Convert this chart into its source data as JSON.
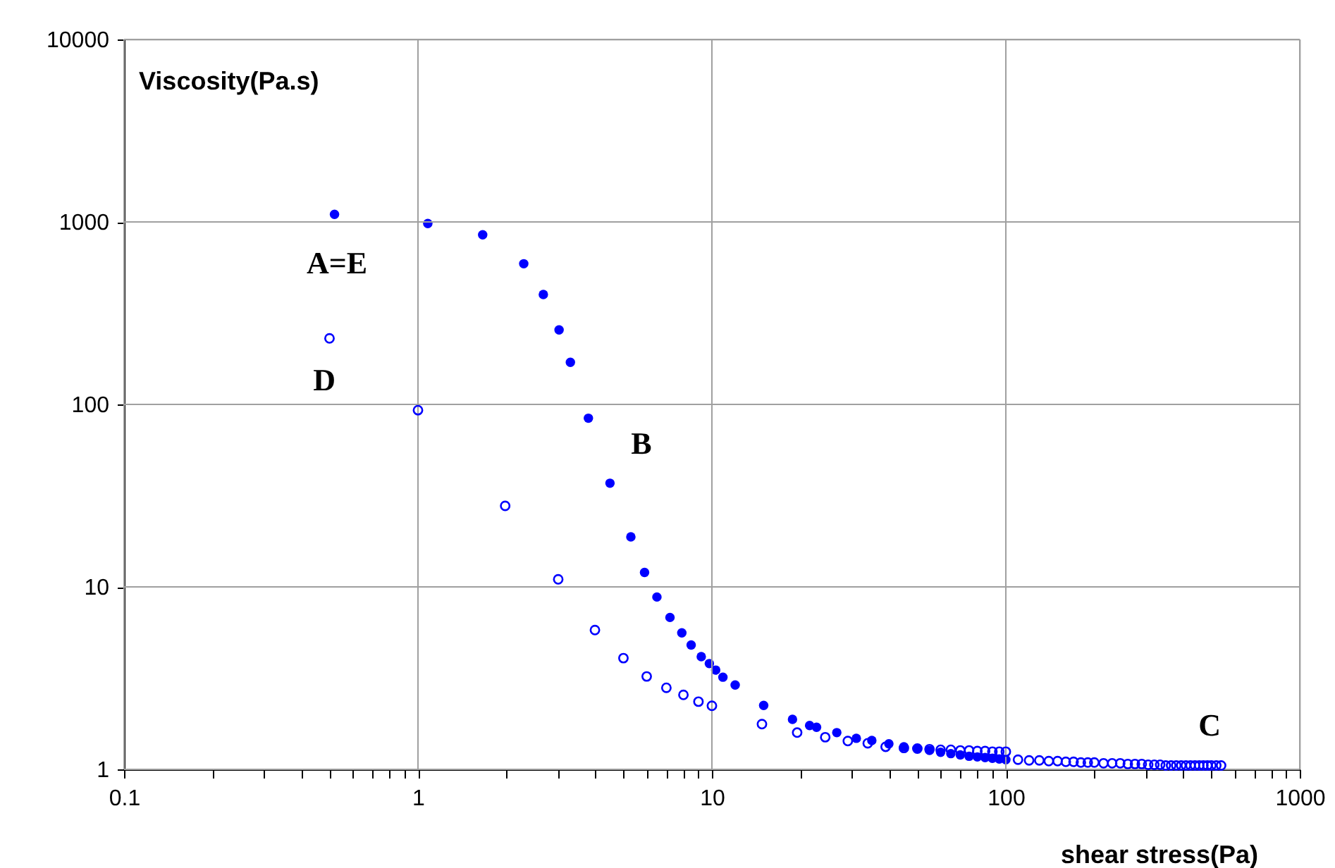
{
  "chart_data": {
    "type": "scatter",
    "xlabel": "shear stress(Pa)",
    "ylabel": "Viscosity(Pa.s)",
    "log": "xy",
    "grid": true,
    "marker": "circle",
    "xlim": [
      0.1,
      1000
    ],
    "ylim": [
      1,
      10000
    ],
    "xticks": [
      0.1,
      {
        "value": 0.2,
        "label": null
      },
      {
        "value": 0.3,
        "label": null
      },
      {
        "value": 0.4,
        "label": null
      },
      {
        "value": 0.5,
        "label": null
      },
      {
        "value": 0.6,
        "label": null
      },
      {
        "value": 0.7,
        "label": null
      },
      {
        "value": 0.8,
        "label": null
      },
      {
        "value": 0.9,
        "label": null
      },
      1,
      {
        "value": 2,
        "label": null
      },
      {
        "value": 3,
        "label": null
      },
      {
        "value": 4,
        "label": null
      },
      {
        "value": 5,
        "label": null
      },
      {
        "value": 6,
        "label": null
      },
      {
        "value": 7,
        "label": null
      },
      {
        "value": 8,
        "label": null
      },
      {
        "value": 9,
        "label": null
      },
      10,
      {
        "value": 20,
        "label": null
      },
      {
        "value": 30,
        "label": null
      },
      {
        "value": 40,
        "label": null
      },
      {
        "value": 50,
        "label": null
      },
      {
        "value": 60,
        "label": null
      },
      {
        "value": 70,
        "label": null
      },
      {
        "value": 80,
        "label": null
      },
      {
        "value": 90,
        "label": null
      },
      100,
      {
        "value": 200,
        "label": null
      },
      {
        "value": 300,
        "label": null
      },
      {
        "value": 400,
        "label": null
      },
      {
        "value": 500,
        "label": null
      },
      {
        "value": 600,
        "label": null
      },
      {
        "value": 700,
        "label": null
      },
      {
        "value": 800,
        "label": null
      },
      {
        "value": 900,
        "label": null
      },
      1000
    ],
    "yticks": [
      1,
      10,
      100,
      1000,
      10000
    ],
    "series": [
      {
        "color": "#0000ff",
        "x": [
          0.52,
          1.08,
          1.66,
          2.29,
          2.67,
          3.02,
          3.3,
          3.8,
          4.5,
          5.3,
          5.9,
          6.5,
          7.2,
          7.9,
          8.5,
          9.2,
          9.8,
          10.3,
          10.9,
          12,
          15,
          18.8,
          21.5,
          22.7,
          26.6,
          31,
          35,
          40,
          45,
          50,
          55,
          60,
          65,
          70,
          75,
          80,
          85,
          90,
          95,
          100
        ],
        "values": [
          1100,
          980,
          850,
          590,
          400,
          256,
          170,
          84,
          37,
          18.8,
          12,
          8.8,
          6.8,
          5.6,
          4.8,
          4.15,
          3.8,
          3.5,
          3.2,
          2.9,
          2.24,
          1.88,
          1.74,
          1.7,
          1.59,
          1.48,
          1.44,
          1.38,
          1.33,
          1.3,
          1.27,
          1.24,
          1.22,
          1.2,
          1.18,
          1.17,
          1.16,
          1.15,
          1.14,
          1.13
        ]
      },
      {
        "color": "#0000ff",
        "x": [
          0.5,
          1.0,
          1.98,
          3.0,
          4.0,
          5.0,
          6.0,
          7.0,
          8.0,
          9.0,
          10,
          14.8,
          19.5,
          24.3,
          29,
          33.9,
          39,
          45,
          50,
          55,
          60,
          65,
          70,
          75,
          80,
          85,
          90,
          95,
          100,
          110,
          120,
          130,
          140,
          150,
          160,
          170,
          180,
          190,
          200,
          215,
          230,
          245,
          260,
          275,
          290,
          305,
          320,
          335,
          350,
          365,
          380,
          395,
          410,
          425,
          440,
          455,
          470,
          485,
          500,
          520,
          540
        ],
        "values": [
          230,
          93,
          27.8,
          11,
          5.8,
          4.07,
          3.23,
          2.8,
          2.56,
          2.35,
          2.23,
          1.77,
          1.59,
          1.5,
          1.43,
          1.39,
          1.33,
          1.31,
          1.3,
          1.29,
          1.28,
          1.28,
          1.27,
          1.27,
          1.26,
          1.26,
          1.25,
          1.25,
          1.25,
          1.13,
          1.12,
          1.12,
          1.11,
          1.11,
          1.1,
          1.1,
          1.09,
          1.09,
          1.09,
          1.08,
          1.08,
          1.08,
          1.07,
          1.07,
          1.07,
          1.06,
          1.06,
          1.06,
          1.05,
          1.05,
          1.05,
          1.05,
          1.05,
          1.05,
          1.05,
          1.05,
          1.05,
          1.05,
          1.05,
          1.05,
          1.05
        ]
      }
    ],
    "annotations": [
      "A=E",
      "D",
      "B",
      "C"
    ]
  }
}
